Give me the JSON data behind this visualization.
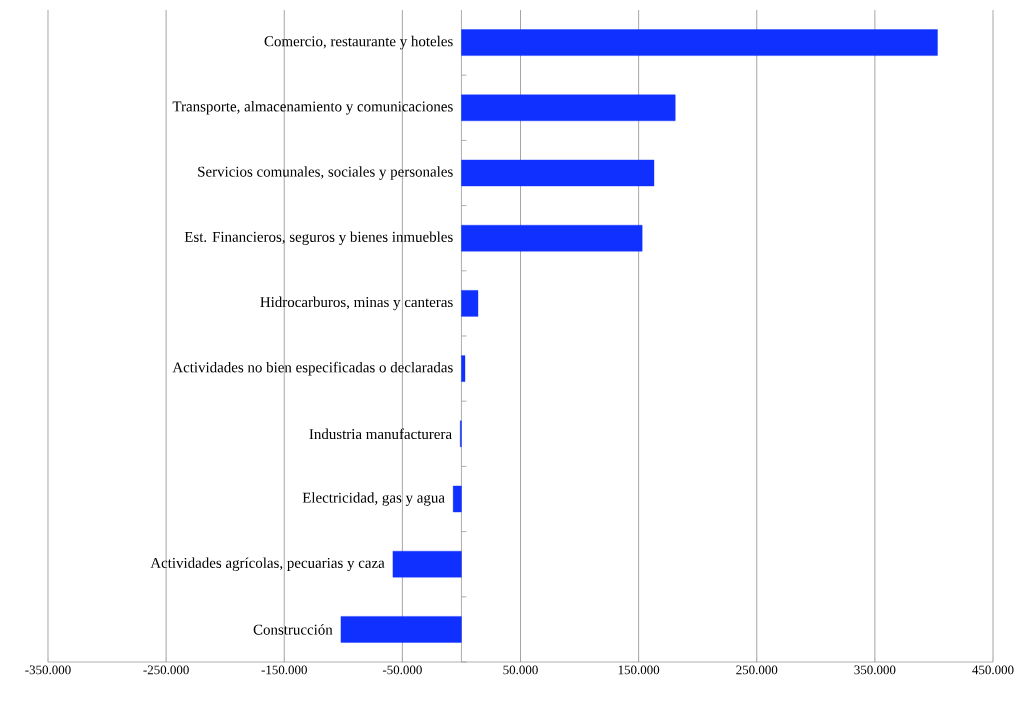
{
  "chart_data": {
    "type": "bar",
    "orientation": "horizontal",
    "categories": [
      "Comercio, restaurante y hoteles",
      "Transporte, almacenamiento y comunicaciones",
      "Servicios comunales, sociales y personales",
      "Est. Financieros, seguros y bienes inmuebles",
      "Hidrocarburos, minas y canteras",
      "Actividades no bien especificadas o declaradas",
      "Industria manufacturera",
      "Electricidad, gas y agua",
      "Actividades agrícolas, pecuarias y caza",
      "Construcción"
    ],
    "values": [
      403000,
      181000,
      163000,
      153000,
      14000,
      3000,
      -1000,
      -7000,
      -58000,
      -102000
    ],
    "color": "#1030ff",
    "xlim": [
      -350000,
      450000
    ],
    "xticks": [
      {
        "value": -350000,
        "label": "-350.000"
      },
      {
        "value": -250000,
        "label": "-250.000"
      },
      {
        "value": -150000,
        "label": "-150.000"
      },
      {
        "value": -50000,
        "label": "-50.000"
      },
      {
        "value": 50000,
        "label": "50.000"
      },
      {
        "value": 150000,
        "label": "150.000"
      },
      {
        "value": 250000,
        "label": "250.000"
      },
      {
        "value": 350000,
        "label": "350.000"
      },
      {
        "value": 450000,
        "label": "450.000"
      }
    ],
    "grid": "x"
  }
}
